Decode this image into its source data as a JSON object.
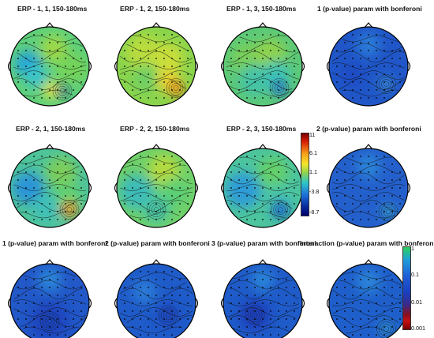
{
  "panels": [
    {
      "title": "ERP - 1, 1, 150-180ms",
      "kind": "erp",
      "variant": 0
    },
    {
      "title": "ERP - 1, 2, 150-180ms",
      "kind": "erp",
      "variant": 1
    },
    {
      "title": "ERP - 1, 3, 150-180ms",
      "kind": "erp",
      "variant": 2
    },
    {
      "title": "1 (p-value) param with bonferoni",
      "kind": "p",
      "variant": 0
    },
    {
      "title": "ERP - 2, 1, 150-180ms",
      "kind": "erp",
      "variant": 3
    },
    {
      "title": "ERP - 2, 2, 150-180ms",
      "kind": "erp",
      "variant": 4
    },
    {
      "title": "ERP - 2, 3, 150-180ms",
      "kind": "erp",
      "variant": 5
    },
    {
      "title": "2 (p-value) param with bonferoni",
      "kind": "p",
      "variant": 1
    },
    {
      "title": "1 (p-value) param with bonferoni",
      "kind": "p",
      "variant": 2
    },
    {
      "title": "2 (p-value) param with bonferoni",
      "kind": "p",
      "variant": 3
    },
    {
      "title": "3 (p-value) param with bonferoni",
      "kind": "p",
      "variant": 4
    },
    {
      "title": "Interaction (p-value) param with bonferoni",
      "kind": "p",
      "variant": 5
    }
  ],
  "erp_colorbar": {
    "ticks": [
      "11",
      "6.1",
      "1.1",
      "-3.8",
      "-8.7"
    ],
    "colors": [
      "#7a0000",
      "#d81e05",
      "#f7a21b",
      "#f5e52a",
      "#8fd44e",
      "#2ec7c9",
      "#1e6fd9",
      "#0a2ea0",
      "#00006e"
    ]
  },
  "p_colorbar": {
    "ticks": [
      "1",
      "0.1",
      "0.01",
      "0.001"
    ],
    "colors": [
      "#2bd15a",
      "#1f9fd8",
      "#1e5fd6",
      "#1a3fbf",
      "#3a2a8a",
      "#8a1020",
      "#c41010",
      "#7a0000"
    ]
  }
}
